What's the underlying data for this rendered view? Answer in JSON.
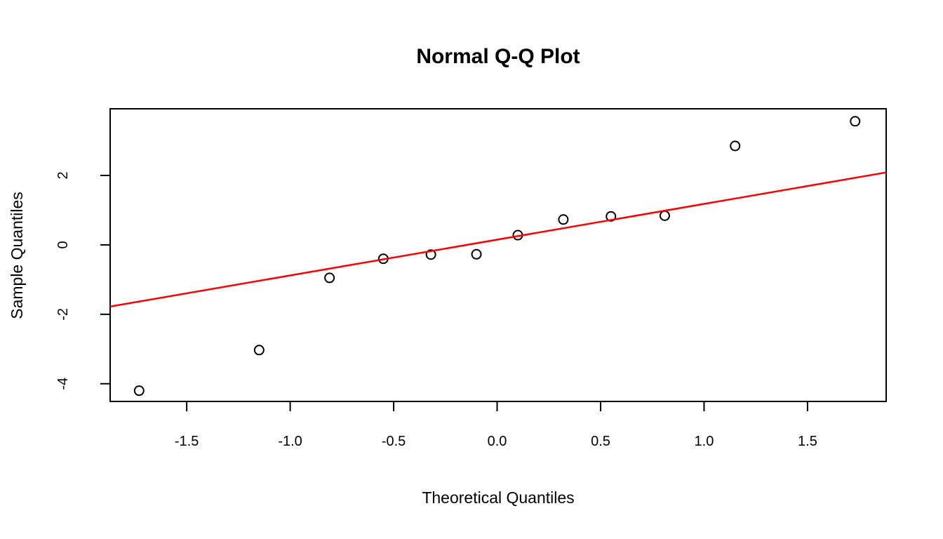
{
  "chart_data": {
    "type": "scatter",
    "title": "Normal Q-Q Plot",
    "xlabel": "Theoretical Quantiles",
    "ylabel": "Sample Quantiles",
    "xlim": [
      -1.87,
      1.88
    ],
    "ylim": [
      -4.51,
      3.92
    ],
    "grid": false,
    "legend": null,
    "x_ticks": {
      "values": [
        -1.5,
        -1.0,
        -0.5,
        0.0,
        0.5,
        1.0,
        1.5
      ],
      "labels": [
        "-1.5",
        "-1.0",
        "-0.5",
        "0.0",
        "0.5",
        "1.0",
        "1.5"
      ]
    },
    "y_ticks": {
      "values": [
        -4,
        -2,
        0,
        2
      ],
      "labels": [
        "-4",
        "-2",
        "0",
        "2"
      ]
    },
    "series": [
      {
        "name": "sample-quantiles-points",
        "type": "scatter",
        "marker": "open-circle",
        "color": "#000000",
        "x": [
          -1.73,
          -1.15,
          -0.81,
          -0.55,
          -0.32,
          -0.1,
          0.1,
          0.32,
          0.55,
          0.81,
          1.15,
          1.73
        ],
        "y": [
          -4.2,
          -3.03,
          -0.95,
          -0.4,
          -0.28,
          -0.27,
          0.28,
          0.73,
          0.82,
          0.84,
          2.85,
          3.56
        ]
      },
      {
        "name": "qq-reference-line",
        "type": "line",
        "color": "#ff0000",
        "slope": 1.03,
        "intercept": 0.15
      }
    ],
    "colors": {
      "background": "#ffffff",
      "axis": "#000000",
      "points": "#000000",
      "line": "#ff0000"
    }
  }
}
